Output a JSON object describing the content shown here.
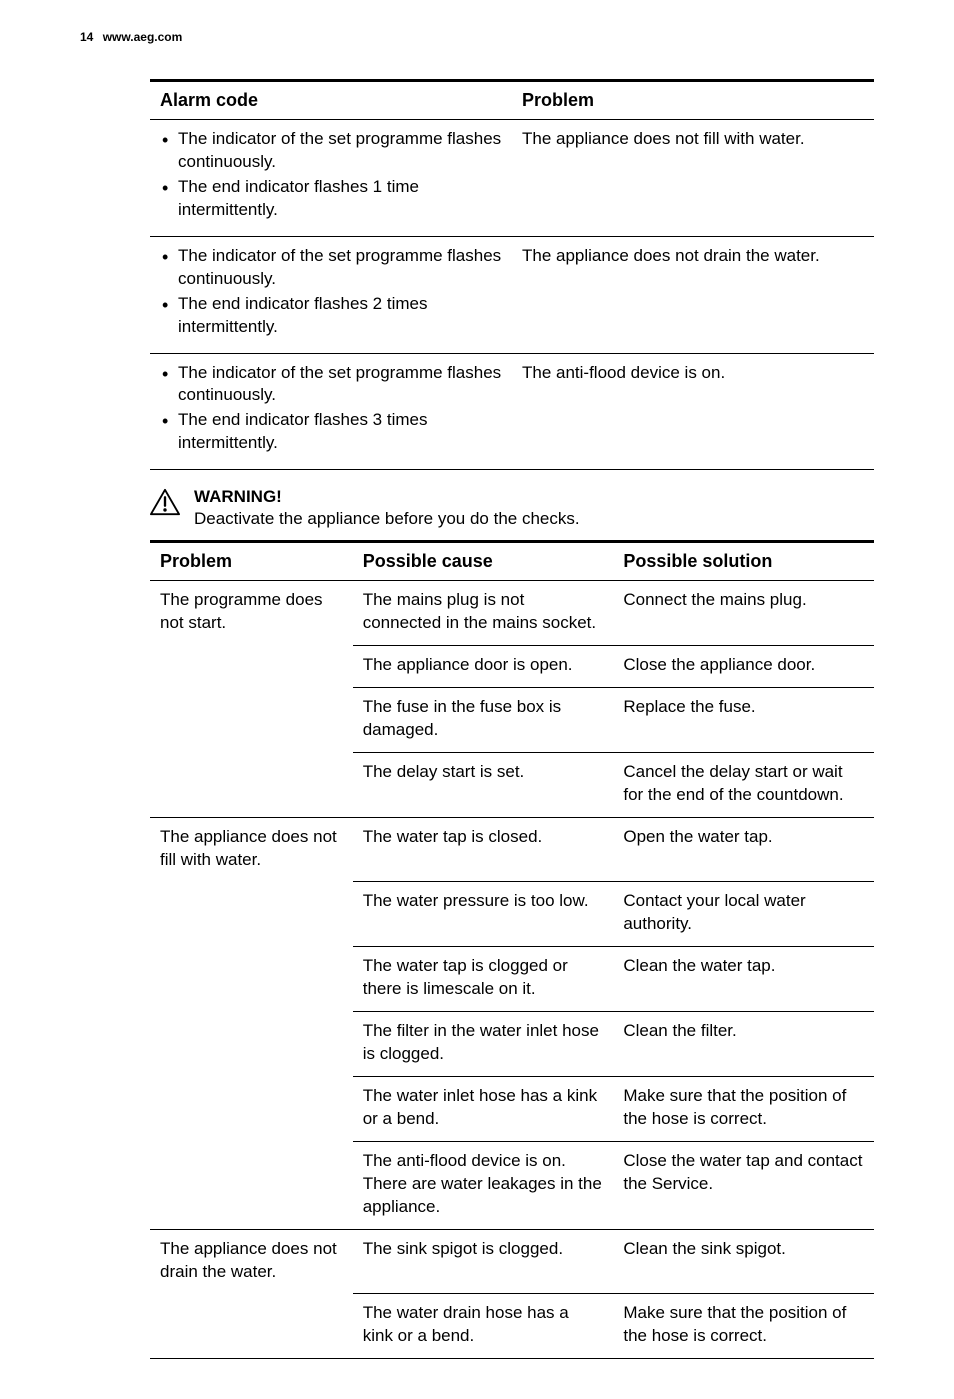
{
  "header": {
    "page_number": "14",
    "site": "www.aeg.com"
  },
  "alarm_table": {
    "headers": [
      "Alarm code",
      "Problem"
    ],
    "rows": [
      {
        "bullets": [
          "The indicator of the set programme flashes continuously.",
          "The end indicator flashes 1 time intermittently."
        ],
        "problem": "The appliance does not fill with water."
      },
      {
        "bullets": [
          "The indicator of the set programme flashes continuously.",
          "The end indicator flashes 2 times intermittently."
        ],
        "problem": "The appliance does not drain the water."
      },
      {
        "bullets": [
          "The indicator of the set programme flashes continuously.",
          "The end indicator flashes 3 times intermittently."
        ],
        "problem": "The anti-flood device is on."
      }
    ]
  },
  "warning": {
    "title": "WARNING!",
    "text": "Deactivate the appliance before you do the checks."
  },
  "trouble_table": {
    "headers": [
      "Problem",
      "Possible cause",
      "Possible solution"
    ],
    "groups": [
      {
        "problem": "The programme does not start.",
        "rows": [
          {
            "cause": "The mains plug is not connected in the mains socket.",
            "solution": "Connect the mains plug."
          },
          {
            "cause": "The appliance door is open.",
            "solution": "Close the appliance door."
          },
          {
            "cause": "The fuse in the fuse box is damaged.",
            "solution": "Replace the fuse."
          },
          {
            "cause": "The delay start is set.",
            "solution": "Cancel the delay start or wait for the end of the countdown."
          }
        ]
      },
      {
        "problem": "The appliance does not fill with water.",
        "rows": [
          {
            "cause": "The water tap is closed.",
            "solution": "Open the water tap."
          },
          {
            "cause": "The water pressure is too low.",
            "solution": "Contact your local water authority."
          },
          {
            "cause": "The water tap is clogged or there is limescale on it.",
            "solution": "Clean the water tap."
          },
          {
            "cause": "The filter in the water inlet hose is clogged.",
            "solution": "Clean the filter."
          },
          {
            "cause": "The water inlet hose has a kink or a bend.",
            "solution": "Make sure that the position of the hose is correct."
          },
          {
            "cause": "The anti-flood device is on. There are water leakages in the appliance.",
            "solution": "Close the water tap and contact the Service."
          }
        ]
      },
      {
        "problem": "The appliance does not drain the water.",
        "rows": [
          {
            "cause": "The sink spigot is clogged.",
            "solution": "Clean the sink spigot."
          },
          {
            "cause": "The water drain hose has a kink or a bend.",
            "solution": "Make sure that the position of the hose is correct."
          }
        ]
      }
    ]
  }
}
